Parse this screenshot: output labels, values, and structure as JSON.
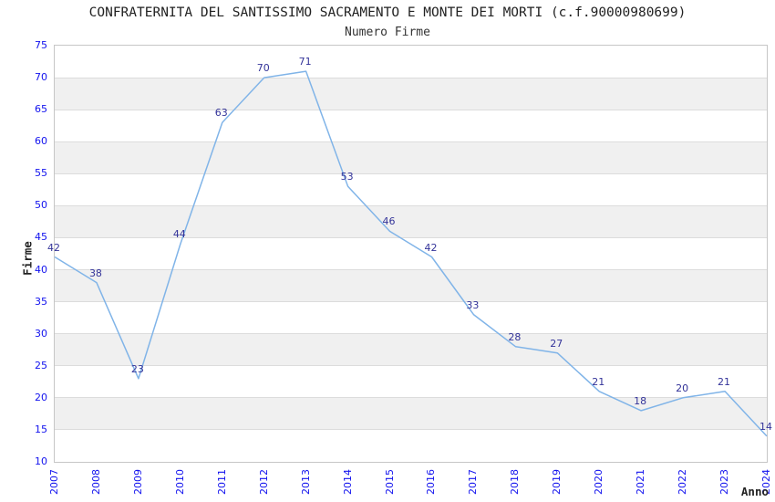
{
  "header": {
    "title": "CONFRATERNITA DEL SANTISSIMO SACRAMENTO E MONTE DEI MORTI (c.f.90000980699)",
    "subtitle": "Numero Firme"
  },
  "chart_data": {
    "type": "line",
    "title": "CONFRATERNITA DEL SANTISSIMO SACRAMENTO E MONTE DEI MORTI (c.f.90000980699)",
    "subtitle": "Numero Firme",
    "xlabel": "Anno",
    "ylabel": "Firme",
    "categories": [
      "2007",
      "2008",
      "2009",
      "2010",
      "2011",
      "2012",
      "2013",
      "2014",
      "2015",
      "2016",
      "2017",
      "2018",
      "2019",
      "2020",
      "2021",
      "2022",
      "2023",
      "2024"
    ],
    "values": [
      42,
      38,
      23,
      44,
      63,
      70,
      71,
      53,
      46,
      42,
      33,
      28,
      27,
      21,
      18,
      20,
      21,
      14
    ],
    "ylim": [
      10,
      75
    ],
    "ytick_step": 5,
    "yticks": [
      75,
      70,
      65,
      60,
      55,
      50,
      45,
      40,
      35,
      30,
      25,
      20,
      15,
      10
    ],
    "grid": "horizontal gridlines every 5 units with alternating light-gray bands",
    "legend_position": "none",
    "data_labels_visible": true,
    "colors": {
      "line": "#80b4e8",
      "tick_label": "#1212ee",
      "data_label": "#333399",
      "band_fill": "#f0f0f0",
      "gridline": "#dcdcdc",
      "plot_border": "#c6c6c6",
      "title_text": "#222222"
    }
  }
}
